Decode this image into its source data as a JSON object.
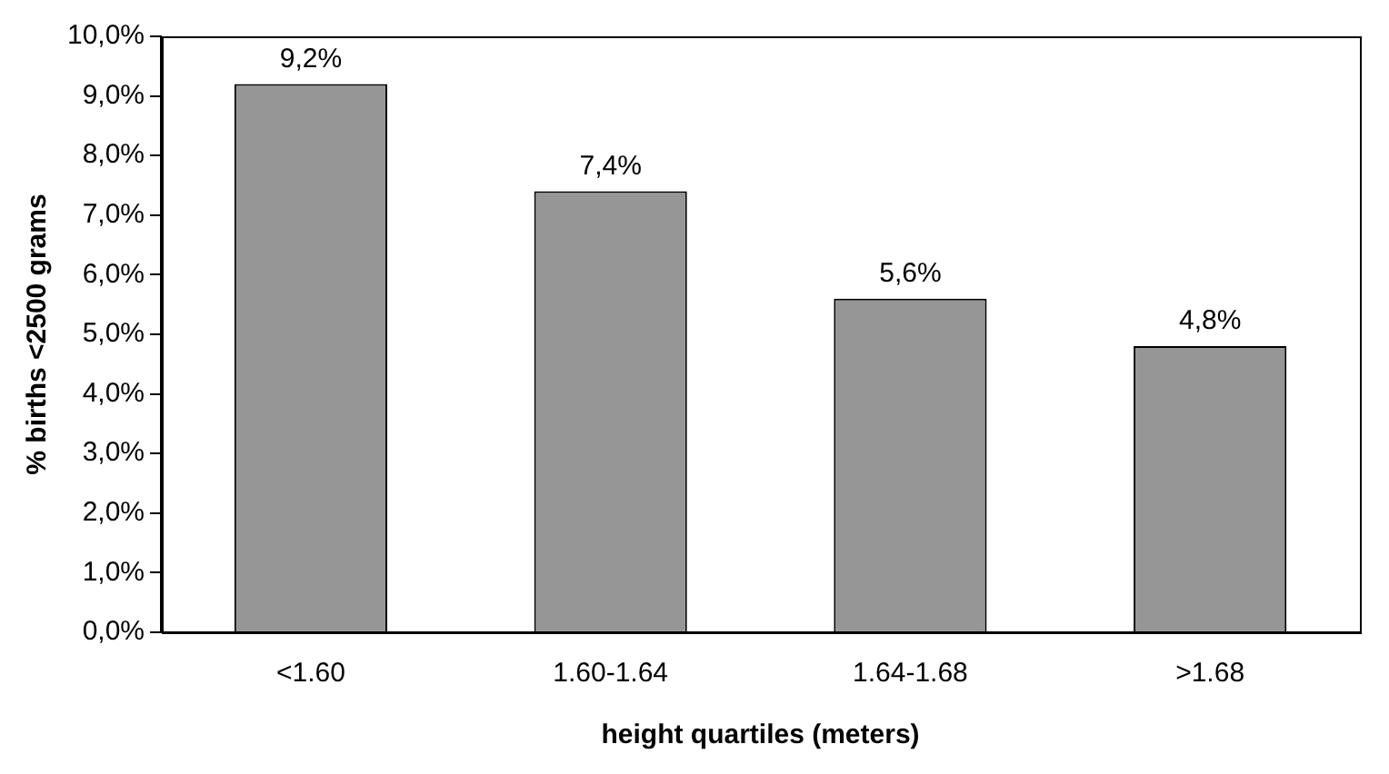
{
  "chart_data": {
    "type": "bar",
    "xlabel": "height quartiles (meters)",
    "ylabel": "% births <2500 grams",
    "categories": [
      "<1.60",
      "1.60-1.64",
      "1.64-1.68",
      ">1.68"
    ],
    "values": [
      9.2,
      7.4,
      5.6,
      4.8
    ],
    "color": "#969696",
    "value_labels": [
      "9,2%",
      "7,4%",
      "5,6%",
      "4,8%"
    ],
    "ylim": [
      0,
      10
    ],
    "yticks": [
      {
        "value": 0,
        "label": "0,0%"
      },
      {
        "value": 1,
        "label": "1,0%"
      },
      {
        "value": 2,
        "label": "2,0%"
      },
      {
        "value": 3,
        "label": "3,0%"
      },
      {
        "value": 4,
        "label": "4,0%"
      },
      {
        "value": 5,
        "label": "5,0%"
      },
      {
        "value": 6,
        "label": "6,0%"
      },
      {
        "value": 7,
        "label": "7,0%"
      },
      {
        "value": 8,
        "label": "8,0%"
      },
      {
        "value": 9,
        "label": "9,0%"
      },
      {
        "value": 10,
        "label": "10,0%"
      }
    ],
    "grid": false,
    "legend": false
  }
}
